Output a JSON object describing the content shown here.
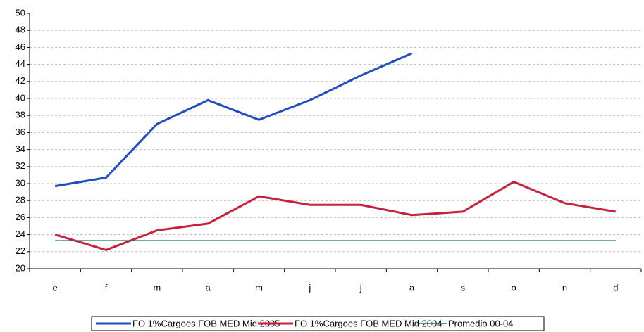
{
  "chart_data": {
    "type": "line",
    "categories": [
      "e",
      "f",
      "m",
      "a",
      "m",
      "j",
      "j",
      "a",
      "s",
      "o",
      "n",
      "d"
    ],
    "series": [
      {
        "name": "FO 1%Cargoes FOB MED Mid 2005",
        "color": "#1f4fbf",
        "values": [
          29.7,
          30.7,
          37.0,
          39.8,
          37.5,
          39.8,
          42.7,
          45.3,
          null,
          null,
          null,
          null
        ]
      },
      {
        "name": "FO 1%Cargoes FOB MED Mid 2004",
        "color": "#c8203f",
        "values": [
          24.0,
          22.2,
          24.5,
          25.3,
          28.5,
          27.5,
          27.5,
          26.3,
          26.7,
          30.2,
          27.7,
          26.7
        ]
      },
      {
        "name": "Promedio 00-04",
        "color": "#1e7a5a",
        "values": [
          23.3,
          23.3,
          23.3,
          23.3,
          23.3,
          23.3,
          23.3,
          23.3,
          23.3,
          23.3,
          23.3,
          23.3
        ]
      }
    ],
    "ylim": [
      20,
      50
    ],
    "yticks": [
      20,
      22,
      24,
      26,
      28,
      30,
      32,
      34,
      36,
      38,
      40,
      42,
      44,
      46,
      48,
      50
    ],
    "grid": true,
    "legend": "bottom"
  }
}
